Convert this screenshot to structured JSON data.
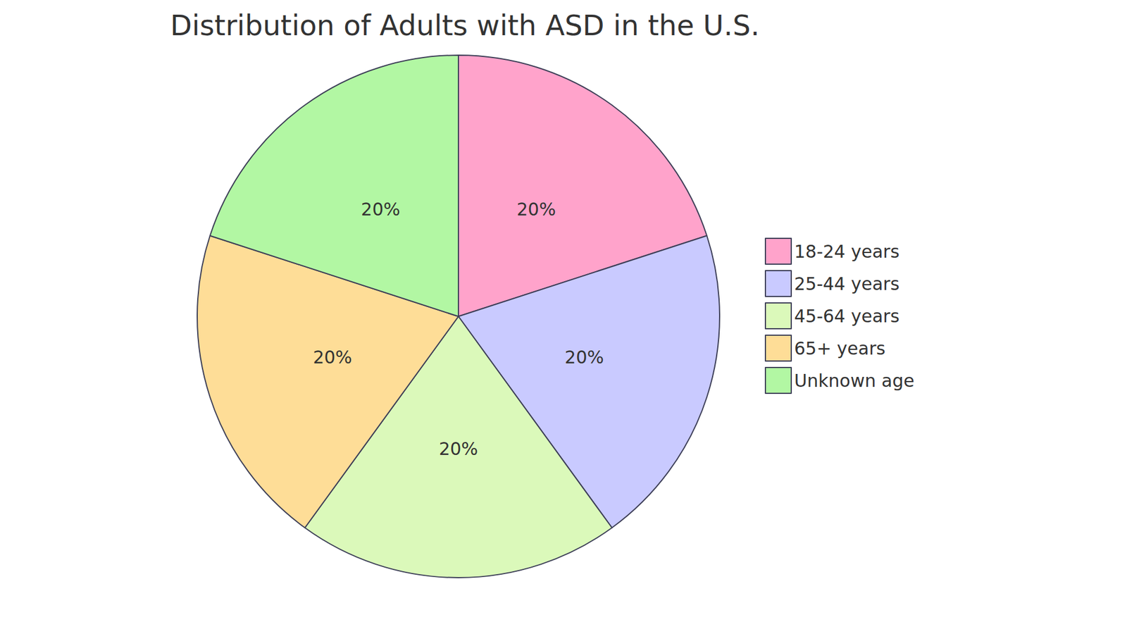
{
  "chart_data": {
    "type": "pie",
    "title": "Distribution of Adults with ASD in the U.S.",
    "categories": [
      "18-24 years",
      "25-44 years",
      "45-64 years",
      "65+ years",
      "Unknown age"
    ],
    "values": [
      20,
      20,
      20,
      20,
      20
    ],
    "value_labels": [
      "20%",
      "20%",
      "20%",
      "20%",
      "20%"
    ],
    "colors": [
      "#FFA3CB",
      "#C9CAFF",
      "#DBF9BA",
      "#FEDD97",
      "#B2F7A3"
    ],
    "data_labels": true,
    "legend": "right"
  }
}
